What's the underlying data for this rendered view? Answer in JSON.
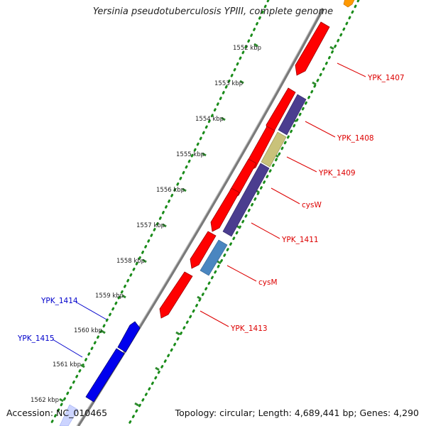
{
  "title": "Yersinia pseudotuberculosis YPIII, complete genome",
  "footer": {
    "accession": "Accession: NC_010465",
    "summary": "Topology: circular; Length: 4,689,441 bp; Genes: 4,290"
  },
  "colors": {
    "red": "#ff0000",
    "dark_red": "#a00000",
    "purple": "#4b3d8f",
    "khaki": "#c9c27a",
    "steel": "#4a86c0",
    "blue": "#0000ee",
    "orange": "#ff9900",
    "green_dots": "#1a8c1a",
    "backbone": "#8c8c8c",
    "label_red": "#dd0000",
    "label_blue": "#0000cc"
  },
  "ticks": [
    {
      "label": "1552 kbp",
      "pos": 1552
    },
    {
      "label": "1553 kbp",
      "pos": 1553
    },
    {
      "label": "1554 kbp",
      "pos": 1554
    },
    {
      "label": "1555 kbp",
      "pos": 1555
    },
    {
      "label": "1556 kbp",
      "pos": 1556
    },
    {
      "label": "1557 kbp",
      "pos": 1557
    },
    {
      "label": "1558 kbp",
      "pos": 1558
    },
    {
      "label": "1559 kbp",
      "pos": 1559
    },
    {
      "label": "1560 kbp",
      "pos": 1560
    },
    {
      "label": "1561 kbp",
      "pos": 1561
    },
    {
      "label": "1562 kbp",
      "pos": 1562
    }
  ],
  "genes": [
    {
      "name": "YPK_1407",
      "side": "right"
    },
    {
      "name": "YPK_1408",
      "side": "right"
    },
    {
      "name": "YPK_1409",
      "side": "right"
    },
    {
      "name": "cysW",
      "side": "right"
    },
    {
      "name": "YPK_1411",
      "side": "right"
    },
    {
      "name": "cysM",
      "side": "right"
    },
    {
      "name": "YPK_1413",
      "side": "right"
    },
    {
      "name": "YPK_1414",
      "side": "left"
    },
    {
      "name": "YPK_1415",
      "side": "left"
    }
  ]
}
